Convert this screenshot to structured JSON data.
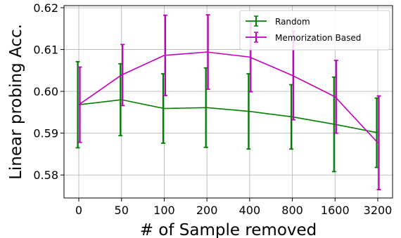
{
  "chart_data": {
    "type": "line",
    "xlabel": "# of Sample removed",
    "ylabel": "Linear probing Acc.",
    "categories": [
      "0",
      "50",
      "100",
      "200",
      "400",
      "800",
      "1600",
      "3200"
    ],
    "ylim": [
      0.5745,
      0.6205
    ],
    "yticks": [
      0.58,
      0.59,
      0.6,
      0.61,
      0.62
    ],
    "ytick_labels": [
      "0.58",
      "0.59",
      "0.60",
      "0.61",
      "0.62"
    ],
    "grid": true,
    "legend_position": "top-right",
    "series": [
      {
        "name": "Random",
        "color": "#008000",
        "values": [
          0.5968,
          0.598,
          0.5959,
          0.5961,
          0.5952,
          0.5939,
          0.5921,
          0.5901
        ],
        "errors": [
          0.0103,
          0.0086,
          0.0083,
          0.0095,
          0.009,
          0.0077,
          0.0113,
          0.0083
        ]
      },
      {
        "name": "Memorization Based",
        "color": "#bf00bf",
        "values": [
          0.5968,
          0.6039,
          0.6086,
          0.6094,
          0.6082,
          0.6038,
          0.5987,
          0.5877
        ],
        "errors": [
          0.009,
          0.0073,
          0.0096,
          0.0089,
          0.0083,
          0.0106,
          0.0087,
          0.0112
        ]
      }
    ]
  }
}
